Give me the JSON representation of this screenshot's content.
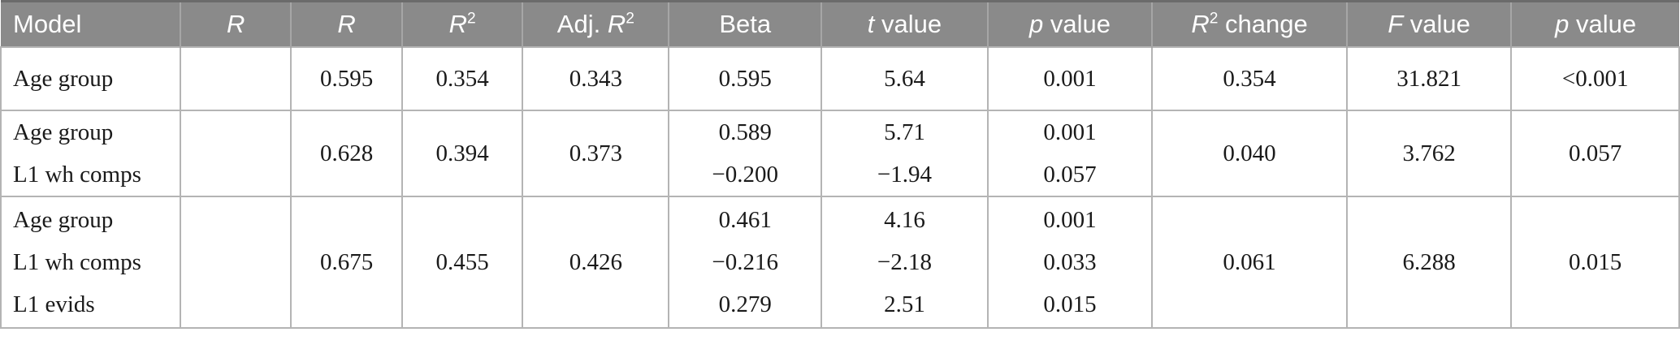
{
  "colors": {
    "header_bg": "#8a8a8a",
    "header_text": "#ffffff",
    "header_separator": "#a6a6a6",
    "header_top_border": "#6b6b6b",
    "body_text": "#1a1a1a",
    "grid_line": "#b4b4b4"
  },
  "header": {
    "cells": [
      {
        "key": "model",
        "parts": [
          {
            "t": "Model"
          }
        ]
      },
      {
        "key": "r-empty",
        "parts": [
          {
            "t": "R",
            "i": true
          }
        ]
      },
      {
        "key": "r",
        "parts": [
          {
            "t": "R",
            "i": true
          }
        ]
      },
      {
        "key": "r2",
        "parts": [
          {
            "t": "R",
            "i": true
          },
          {
            "t": "2",
            "sup": true
          }
        ]
      },
      {
        "key": "adj-r2",
        "parts": [
          {
            "t": "Adj. "
          },
          {
            "t": "R",
            "i": true
          },
          {
            "t": "2",
            "sup": true
          }
        ]
      },
      {
        "key": "beta",
        "parts": [
          {
            "t": "Beta"
          }
        ]
      },
      {
        "key": "t-value",
        "parts": [
          {
            "t": "t",
            "i": true
          },
          {
            "t": " value"
          }
        ]
      },
      {
        "key": "p-value",
        "parts": [
          {
            "t": "p",
            "i": true
          },
          {
            "t": " value"
          }
        ]
      },
      {
        "key": "r2-change",
        "parts": [
          {
            "t": "R",
            "i": true
          },
          {
            "t": "2",
            "sup": true
          },
          {
            "t": " change"
          }
        ]
      },
      {
        "key": "f-value",
        "parts": [
          {
            "t": "F",
            "i": true
          },
          {
            "t": " value"
          }
        ]
      },
      {
        "key": "p-value-2",
        "parts": [
          {
            "t": "p",
            "i": true
          },
          {
            "t": " value"
          }
        ]
      }
    ]
  },
  "chart_data": {
    "type": "table",
    "title": "",
    "columns": [
      "Model",
      "R",
      "R",
      "R²",
      "Adj. R²",
      "Beta",
      "t value",
      "p value",
      "R² change",
      "F value",
      "p value"
    ],
    "rows": [
      [
        [
          "Age group"
        ],
        [
          ""
        ],
        [
          "0.595"
        ],
        [
          "0.354"
        ],
        [
          "0.343"
        ],
        [
          "0.595"
        ],
        [
          "5.64"
        ],
        [
          "0.001"
        ],
        [
          "0.354"
        ],
        [
          "31.821"
        ],
        [
          "<0.001"
        ]
      ],
      [
        [
          "Age group",
          "L1 wh comps"
        ],
        [
          ""
        ],
        [
          "0.628"
        ],
        [
          "0.394"
        ],
        [
          "0.373"
        ],
        [
          "0.589",
          "−0.200"
        ],
        [
          "5.71",
          "−1.94"
        ],
        [
          "0.001",
          "0.057"
        ],
        [
          "0.040"
        ],
        [
          "3.762"
        ],
        [
          "0.057"
        ]
      ],
      [
        [
          "Age group",
          "L1 wh comps",
          "L1 evids"
        ],
        [
          ""
        ],
        [
          "0.675"
        ],
        [
          "0.455"
        ],
        [
          "0.426"
        ],
        [
          "0.461",
          "−0.216",
          "0.279"
        ],
        [
          "4.16",
          "−2.18",
          "2.51"
        ],
        [
          "0.001",
          "0.033",
          "0.015"
        ],
        [
          "0.061"
        ],
        [
          "6.288"
        ],
        [
          "0.015"
        ]
      ]
    ]
  }
}
